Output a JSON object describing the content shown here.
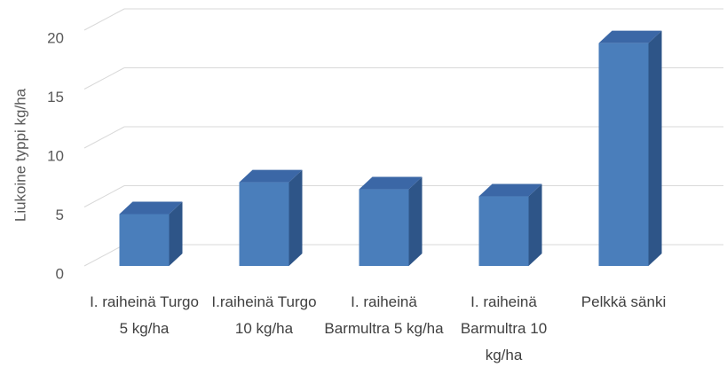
{
  "chart_data": {
    "type": "bar3d",
    "y_label": "Liukoine typpi kg/ha",
    "categories": [
      "I. raiheinä Turgo 5 kg/ha",
      "I.raiheinä Turgo 10 kg/ha",
      "I. raiheinä Barmultra 5 kg/ha",
      "I. raiheinä Barmultra 10 kg/ha",
      "Pelkkä sänki"
    ],
    "values": [
      4.4,
      7.1,
      6.5,
      5.9,
      18.9
    ],
    "color": "#4a7ebb",
    "ylim": [
      0,
      20
    ],
    "yticks": [
      0,
      5,
      10,
      15,
      20
    ],
    "grid": true
  }
}
